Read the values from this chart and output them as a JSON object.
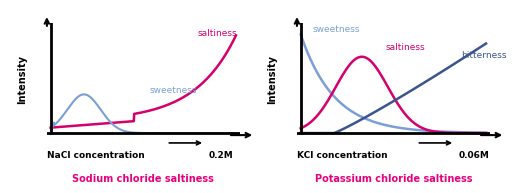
{
  "nacl": {
    "title": "Sodium chloride saltiness",
    "title_color": "#e8007d",
    "xlabel": "NaCl concentration",
    "xlabel_end": "0.2M",
    "ylabel": "Intensity",
    "saltiness_color": "#d5006d",
    "sweetness_color": "#7b9fd4",
    "saltiness_label": "saltiness",
    "sweetness_label": "sweetness"
  },
  "kcl": {
    "title": "Potassium chloride saltiness",
    "title_color": "#e8007d",
    "xlabel": "KCl concentration",
    "xlabel_end": "0.06M",
    "ylabel": "Intensity",
    "saltiness_color": "#d5006d",
    "sweetness_color": "#7b9fd4",
    "bitterness_color": "#3a5490",
    "saltiness_label": "saltiness",
    "sweetness_label": "sweetness",
    "bitterness_label": "bitterness"
  },
  "background_color": "#ffffff"
}
